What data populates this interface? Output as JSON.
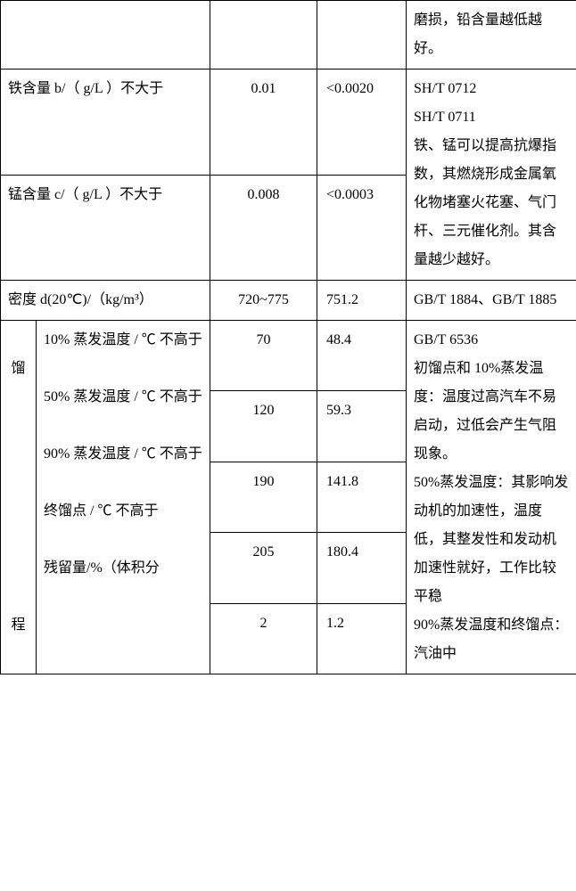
{
  "table": {
    "row0": {
      "label": "",
      "spec": "",
      "val": "",
      "note": "磨损，铅含量越低越好。"
    },
    "row_fe": {
      "label": "铁含量  b/（ g/L ）不大于",
      "spec": "0.01",
      "val": "<0.0020",
      "note": "SH/T 0712\nSH/T 0711\n铁、锰可以提高抗爆指数，其燃烧形成金属氧化物堵塞火花塞、气门杆、三元催化剂。其含量越少越好。"
    },
    "row_mn": {
      "label": "锰含量  c/（ g/L ）不大于",
      "spec": "0.008",
      "val": "<0.0003"
    },
    "row_density": {
      "label": "密度 d(20℃)/（kg/m³）",
      "spec": "720~775",
      "val": "751.2",
      "note": "GB/T 1884、GB/T 1885"
    },
    "distill": {
      "group_label": "馏\n\n\n\n\n\n程",
      "sub_labels": "10% 蒸发温度 / ℃ 不高于\n\n50% 蒸发温度 / ℃ 不高于\n\n90% 蒸发温度 / ℃ 不高于\n\n终馏点 / ℃ 不高于\n\n残留量/%（体积分",
      "spec1": "70",
      "val1": "48.4",
      "spec2": "120",
      "val2": "59.3",
      "spec3": "190",
      "val3": "141.8",
      "spec4": "205",
      "val4": "180.4",
      "spec5": "2",
      "val5": "1.2",
      "note": "GB/T 6536\n初馏点和 10%蒸发温度：温度过高汽车不易启动，过低会产生气阻现象。\n50%蒸发温度：其影响发动机的加速性，温度低，其整发性和发动机加速性就好，工作比较平稳\n90%蒸发温度和终馏点：汽油中"
    }
  }
}
